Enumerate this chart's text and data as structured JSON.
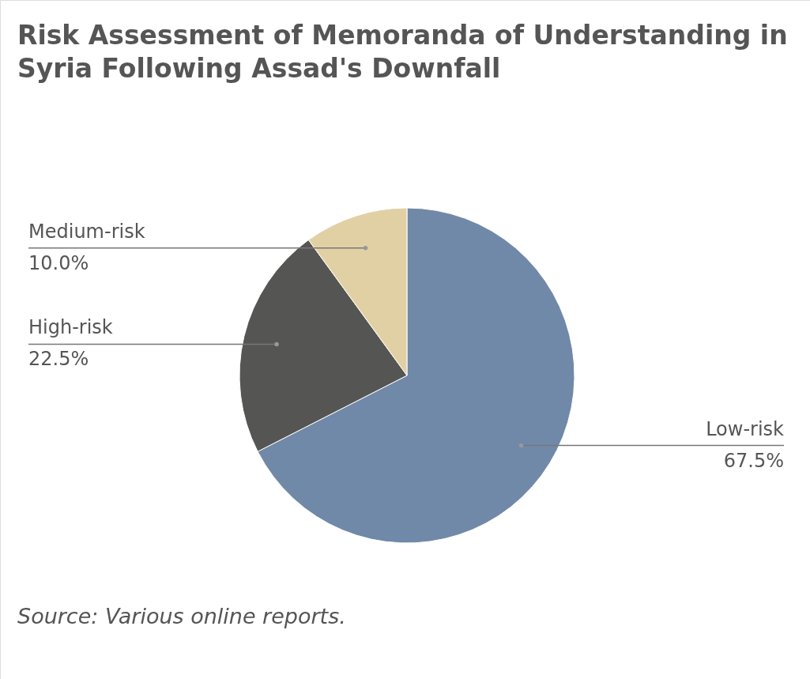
{
  "chart_data": {
    "type": "pie",
    "title": "Risk Assessment of Memoranda of Understanding in Syria Following Assad's Downfall",
    "categories": [
      "Low-risk",
      "High-risk",
      "Medium-risk"
    ],
    "values": [
      67.5,
      22.5,
      10.0
    ],
    "value_labels": [
      "67.5%",
      "22.5%",
      "10.0%"
    ],
    "colors": [
      "#7189a8",
      "#555553",
      "#e2d0a5"
    ],
    "annotations": [
      "Source: Various online reports."
    ]
  }
}
